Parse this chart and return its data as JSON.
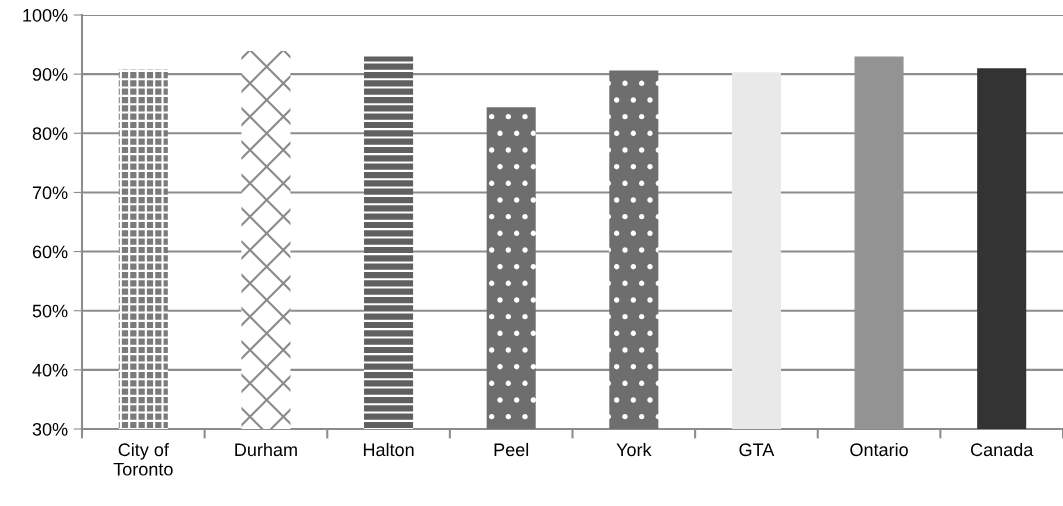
{
  "chart_data": {
    "type": "bar",
    "categories": [
      "City of\nToronto",
      "Durham",
      "Halton",
      "Peel",
      "York",
      "GTA",
      "Ontario",
      "Canada"
    ],
    "values": [
      90.8,
      93.9,
      93.0,
      84.4,
      90.6,
      90.3,
      93.0,
      91.0
    ],
    "colors": [
      "#7a7a7a",
      "#ffffff",
      "#606060",
      "#6e6e6e",
      "#6e6e6e",
      "#e9e9e9",
      "#939393",
      "#333333"
    ],
    "ylim": [
      30,
      100
    ],
    "yticks": [
      {
        "value": 30,
        "label": "30%"
      },
      {
        "value": 40,
        "label": "40%"
      },
      {
        "value": 50,
        "label": "50%"
      },
      {
        "value": 60,
        "label": "60%"
      },
      {
        "value": 70,
        "label": "70%"
      },
      {
        "value": 80,
        "label": "80%"
      },
      {
        "value": 90,
        "label": "90%"
      },
      {
        "value": 100,
        "label": "100%"
      }
    ],
    "grid": "y"
  }
}
